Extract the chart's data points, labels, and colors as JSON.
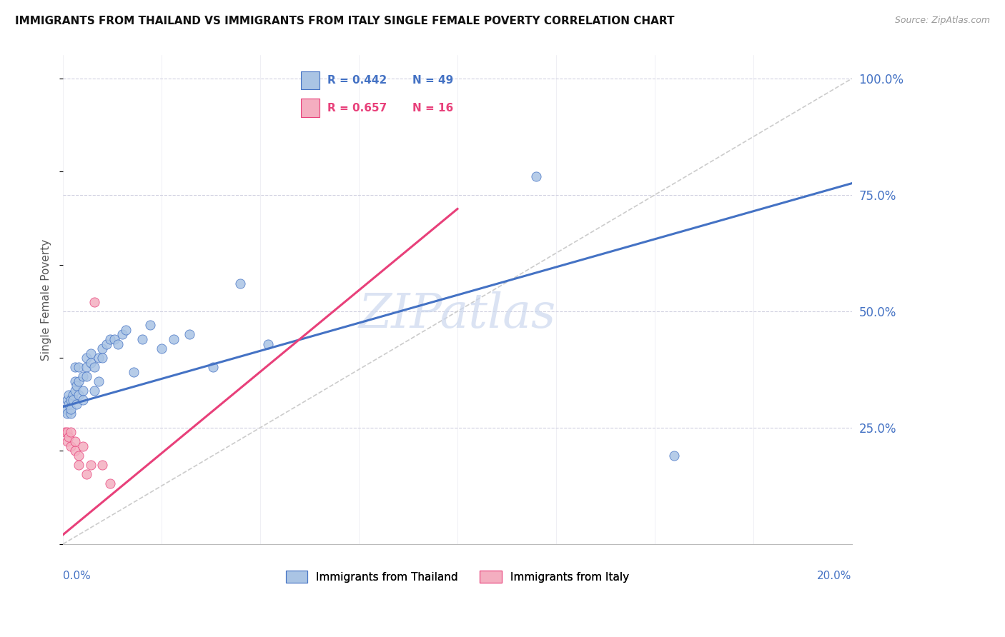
{
  "title": "IMMIGRANTS FROM THAILAND VS IMMIGRANTS FROM ITALY SINGLE FEMALE POVERTY CORRELATION CHART",
  "source": "Source: ZipAtlas.com",
  "ylabel": "Single Female Poverty",
  "thailand_color": "#aac4e4",
  "italy_color": "#f4aec0",
  "trend_thailand_color": "#4472c4",
  "trend_italy_color": "#e8407a",
  "diagonal_color": "#cccccc",
  "background_color": "#ffffff",
  "grid_color": "#d0d0e0",
  "label_color": "#4472c4",
  "watermark_color": "#ccd8ee",
  "xlim": [
    0.0,
    0.2
  ],
  "ylim": [
    0.0,
    1.05
  ],
  "figsize": [
    14.06,
    8.92
  ],
  "dpi": 100,
  "thailand_trend_x0": 0.0,
  "thailand_trend_y0": 0.295,
  "thailand_trend_x1": 0.2,
  "thailand_trend_y1": 0.775,
  "italy_trend_x0": 0.0,
  "italy_trend_y0": 0.02,
  "italy_trend_x1": 0.1,
  "italy_trend_y1": 0.72,
  "thailand_points_x": [
    0.0005,
    0.001,
    0.001,
    0.0015,
    0.0015,
    0.002,
    0.002,
    0.002,
    0.0025,
    0.0025,
    0.003,
    0.003,
    0.003,
    0.0035,
    0.0035,
    0.004,
    0.004,
    0.004,
    0.005,
    0.005,
    0.005,
    0.006,
    0.006,
    0.006,
    0.007,
    0.007,
    0.008,
    0.008,
    0.009,
    0.009,
    0.01,
    0.01,
    0.011,
    0.012,
    0.013,
    0.014,
    0.015,
    0.016,
    0.018,
    0.02,
    0.022,
    0.025,
    0.028,
    0.032,
    0.038,
    0.045,
    0.052,
    0.12,
    0.155
  ],
  "thailand_points_y": [
    0.29,
    0.31,
    0.28,
    0.3,
    0.32,
    0.31,
    0.28,
    0.29,
    0.32,
    0.31,
    0.33,
    0.35,
    0.38,
    0.34,
    0.3,
    0.32,
    0.35,
    0.38,
    0.33,
    0.36,
    0.31,
    0.38,
    0.4,
    0.36,
    0.39,
    0.41,
    0.38,
    0.33,
    0.4,
    0.35,
    0.42,
    0.4,
    0.43,
    0.44,
    0.44,
    0.43,
    0.45,
    0.46,
    0.37,
    0.44,
    0.47,
    0.42,
    0.44,
    0.45,
    0.38,
    0.56,
    0.43,
    0.79,
    0.19
  ],
  "italy_points_x": [
    0.0005,
    0.001,
    0.001,
    0.0015,
    0.002,
    0.002,
    0.003,
    0.003,
    0.004,
    0.004,
    0.005,
    0.006,
    0.007,
    0.008,
    0.01,
    0.012
  ],
  "italy_points_y": [
    0.24,
    0.24,
    0.22,
    0.23,
    0.24,
    0.21,
    0.2,
    0.22,
    0.19,
    0.17,
    0.21,
    0.15,
    0.17,
    0.52,
    0.17,
    0.13
  ],
  "legend_r_thai": "R = 0.442",
  "legend_n_thai": "N = 49",
  "legend_r_italy": "R = 0.657",
  "legend_n_italy": "N = 16",
  "legend_thai_label": "Immigrants from Thailand",
  "legend_italy_label": "Immigrants from Italy"
}
